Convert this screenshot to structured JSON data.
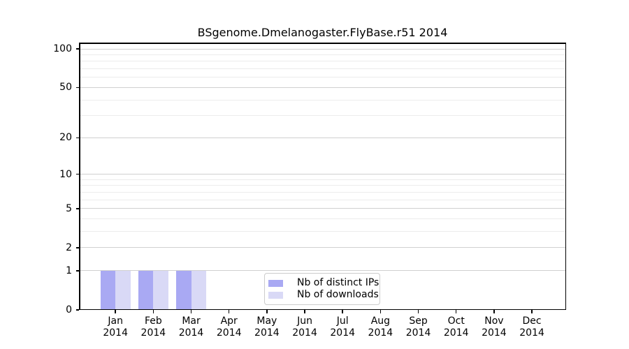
{
  "figure": {
    "background": "#ffffff"
  },
  "chart_data": {
    "type": "bar",
    "title": "BSgenome.Dmelanogaster.FlyBase.r51 2014",
    "categories": [
      {
        "month": "Jan",
        "year": "2014"
      },
      {
        "month": "Feb",
        "year": "2014"
      },
      {
        "month": "Mar",
        "year": "2014"
      },
      {
        "month": "Apr",
        "year": "2014"
      },
      {
        "month": "May",
        "year": "2014"
      },
      {
        "month": "Jun",
        "year": "2014"
      },
      {
        "month": "Jul",
        "year": "2014"
      },
      {
        "month": "Aug",
        "year": "2014"
      },
      {
        "month": "Sep",
        "year": "2014"
      },
      {
        "month": "Oct",
        "year": "2014"
      },
      {
        "month": "Nov",
        "year": "2014"
      },
      {
        "month": "Dec",
        "year": "2014"
      }
    ],
    "series": [
      {
        "name": "Nb of distinct IPs",
        "color": "#a9a9f3",
        "values": [
          1,
          1,
          1,
          0,
          0,
          0,
          0,
          0,
          0,
          0,
          0,
          0
        ]
      },
      {
        "name": "Nb of downloads",
        "color": "#d9d9f6",
        "values": [
          1,
          1,
          1,
          0,
          0,
          0,
          0,
          0,
          0,
          0,
          0,
          0
        ]
      }
    ],
    "yscale": "log1p",
    "ylim": [
      0,
      112
    ],
    "yticks": [
      0,
      1,
      2,
      5,
      10,
      20,
      50,
      100
    ],
    "yticks_minor": [
      3,
      4,
      6,
      7,
      8,
      9,
      30,
      40,
      60,
      70,
      80,
      90
    ],
    "grid": "horizontal",
    "grid_major_color": "#d0d0d0",
    "grid_minor_color": "#ececec",
    "axis_color": "#000000",
    "legend_position": "bottom-center",
    "legend_border_color": "#cccccc"
  }
}
